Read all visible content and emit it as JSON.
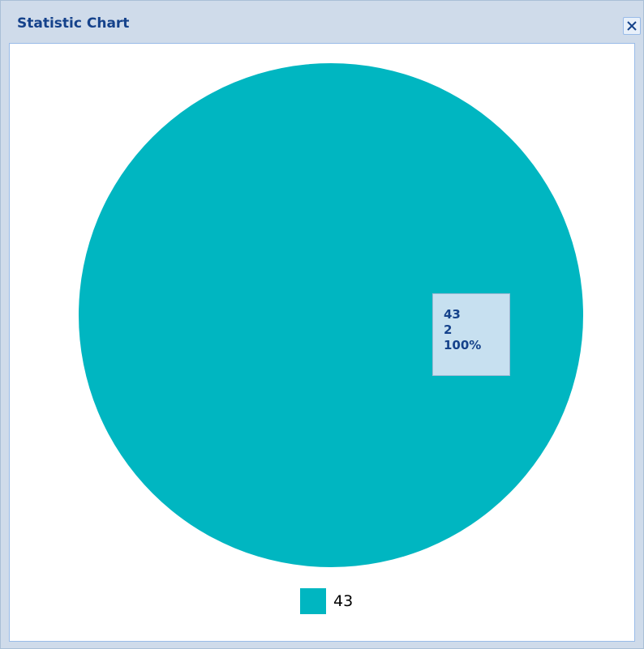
{
  "window": {
    "title": "Statistic Chart"
  },
  "colors": {
    "slice": "#00b6c1",
    "title": "#15428b"
  },
  "icons": {
    "close": "close-icon"
  },
  "chart_data": {
    "type": "pie",
    "categories": [
      "43"
    ],
    "values": [
      2
    ],
    "percentages": [
      "100%"
    ],
    "data_label": {
      "category": "43",
      "value": "2",
      "percent": "100%"
    },
    "legend": {
      "entries": [
        "43"
      ],
      "position": "bottom"
    }
  }
}
